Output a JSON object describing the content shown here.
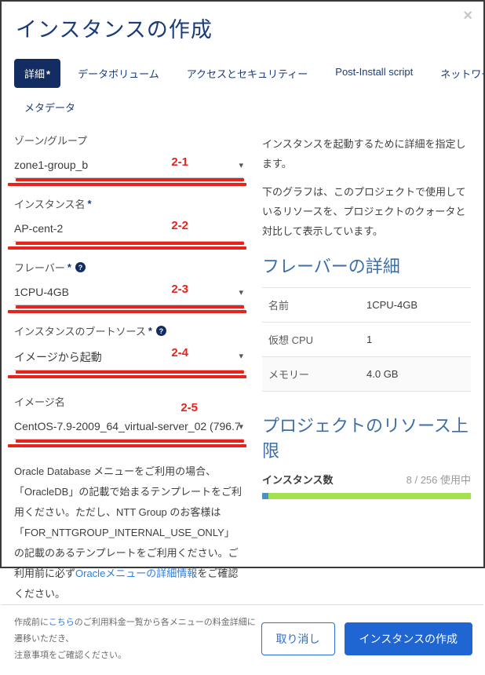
{
  "colors": {
    "accent_navy": "#132d62",
    "title_blue": "#1b3c7a",
    "heading_blue": "#3c6ea9",
    "button_blue": "#2066d2",
    "link_blue": "#2e7de0",
    "annotation_red": "#e8231c",
    "progress_green": "#a3e14e",
    "progress_blue": "#4a8fc8"
  },
  "modal": {
    "title": "インスタンスの作成",
    "close_icon": "×"
  },
  "tabs": {
    "items": [
      {
        "label": "詳細",
        "required_mark": "*",
        "active": true
      },
      {
        "label": "データボリューム"
      },
      {
        "label": "アクセスとセキュリティー"
      },
      {
        "label": "Post-Install script"
      },
      {
        "label": "ネットワーク",
        "required_mark": "*"
      },
      {
        "label": "メタデータ"
      }
    ]
  },
  "form": {
    "fields": [
      {
        "label": "ゾーン/グループ",
        "value": "zone1-group_b",
        "dropdown_icon": "▾",
        "annotation": "2-1"
      },
      {
        "label": "インスタンス名",
        "required_mark": "*",
        "value": "AP-cent-2",
        "annotation": "2-2"
      },
      {
        "label": "フレーバー",
        "required_mark": "*",
        "help_icon": "?",
        "value": "1CPU-4GB",
        "dropdown_icon": "▾",
        "annotation": "2-3"
      },
      {
        "label": "インスタンスのブートソース",
        "required_mark": "*",
        "help_icon": "?",
        "value": "イメージから起動",
        "dropdown_icon": "▾",
        "annotation": "2-4"
      },
      {
        "label": "イメージ名",
        "value": "CentOS-7.9-2009_64_virtual-server_02 (796.7",
        "dropdown_icon": "▾",
        "annotation": "2-5"
      }
    ]
  },
  "oracle_note": {
    "text_before_link": "Oracle Database メニューをご利用の場合、「OracleDB」の記載で始まるテンプレートをご利用ください。ただし、NTT Group のお客様は「FOR_NTTGROUP_INTERNAL_USE_ONLY」の記載のあるテンプレートをご利用ください。ご利用前に必ず",
    "link_text": "Oracleメニューの詳細情報",
    "text_after_link": "をご確認ください。"
  },
  "right_panel": {
    "intro_text_1": "インスタンスを起動するために詳細を指定します。",
    "intro_text_2": "下のグラフは、このプロジェクトで使用しているリソースを、プロジェクトのクォータと対比して表示しています。",
    "flavor_details": {
      "heading": "フレーバーの詳細",
      "rows": [
        {
          "label": "名前",
          "value": "1CPU-4GB"
        },
        {
          "label": "仮想 CPU",
          "value": "1"
        },
        {
          "label": "メモリー",
          "value": "4.0 GB"
        }
      ]
    },
    "project_limits": {
      "heading": "プロジェクトのリソース上限",
      "instance_count_label": "インスタンス数",
      "usage_text": "8 / 256 使用中",
      "used": 8,
      "quota": 256,
      "used_percent_css": "3.1%"
    }
  },
  "footer": {
    "note_before_link": "作成前に",
    "note_link": "こちら",
    "note_after_link": "のご利用料金一覧から各メニューの料金詳細に遷移いただき、",
    "note_line2": "注意事項をご確認ください。",
    "cancel_button": "取り消し",
    "create_button": "インスタンスの作成"
  }
}
